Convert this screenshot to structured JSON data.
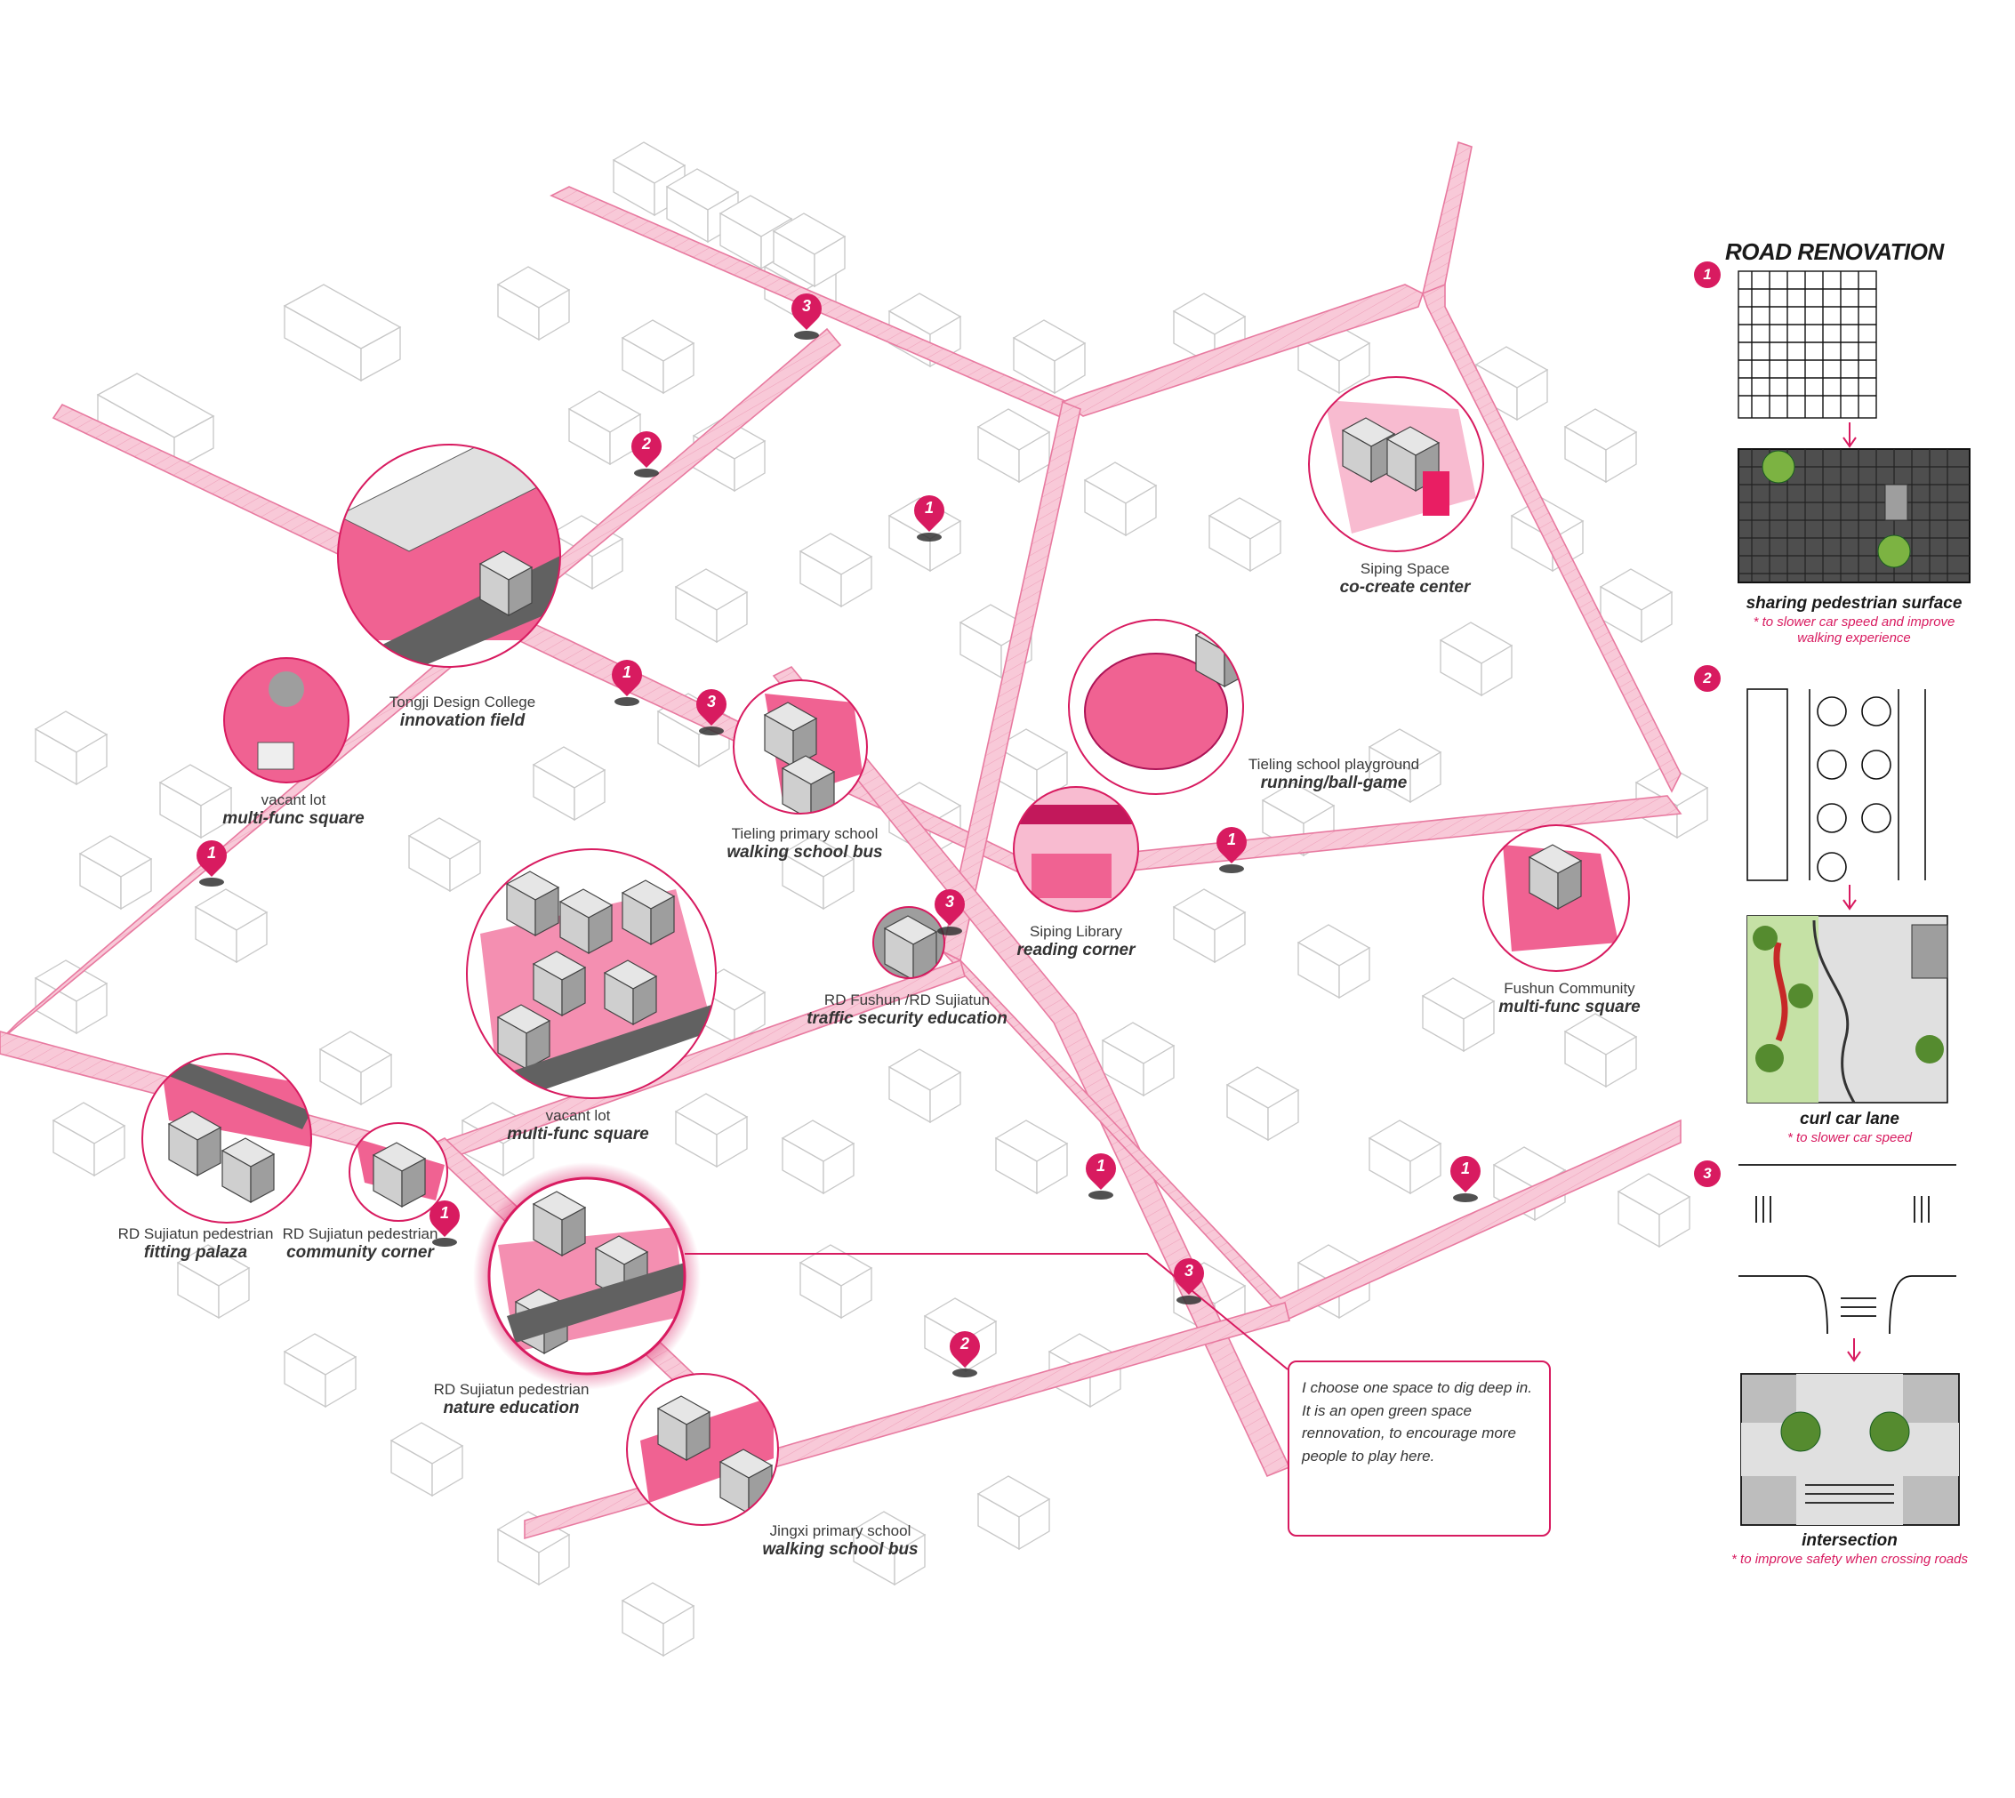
{
  "map": {
    "sites": [
      {
        "place": "Tongji Design College",
        "activity": "innovation field"
      },
      {
        "place": "vacant lot",
        "activity": "multi-func square"
      },
      {
        "place": "Tieling primary school",
        "activity": "walking school bus"
      },
      {
        "place": "Siping Space",
        "activity": "co-create center"
      },
      {
        "place": "Tieling school playground",
        "activity": "running/ball-game"
      },
      {
        "place": "Siping Library",
        "activity": "reading corner"
      },
      {
        "place": "RD Fushun /RD Sujiatun",
        "activity": "traffic security education"
      },
      {
        "place": "Fushun Community",
        "activity": "multi-func square"
      },
      {
        "place": "vacant lot",
        "activity": "multi-func square"
      },
      {
        "place": "RD Sujiatun pedestrian",
        "activity": "fitting palaza"
      },
      {
        "place": "RD Sujiatun pedestrian",
        "activity": "community corner"
      },
      {
        "place": "RD Sujiatun pedestrian",
        "activity": "nature education"
      },
      {
        "place": "Jingxi primary school",
        "activity": "walking school bus"
      }
    ],
    "pins": [
      "3",
      "2",
      "1",
      "1",
      "3",
      "1",
      "3",
      "1",
      "1",
      "1",
      "1",
      "3",
      "2"
    ],
    "note": "I choose one space to dig deep in. It is an open green space rennovation, to encourage more people to play here.",
    "colors": {
      "accent": "#d81b60",
      "road_fill": "#f7c6d6",
      "buildings": "#b8b8b8"
    }
  },
  "panel": {
    "title": "ROAD RENOVATION",
    "steps": [
      {
        "num": "1",
        "title": "sharing pedestrian surface",
        "note": "* to slower car speed and improve walking experience"
      },
      {
        "num": "2",
        "title": "curl car lane",
        "note": "* to slower car speed"
      },
      {
        "num": "3",
        "title": "intersection",
        "note": "* to improve safety when crossing roads"
      }
    ]
  }
}
